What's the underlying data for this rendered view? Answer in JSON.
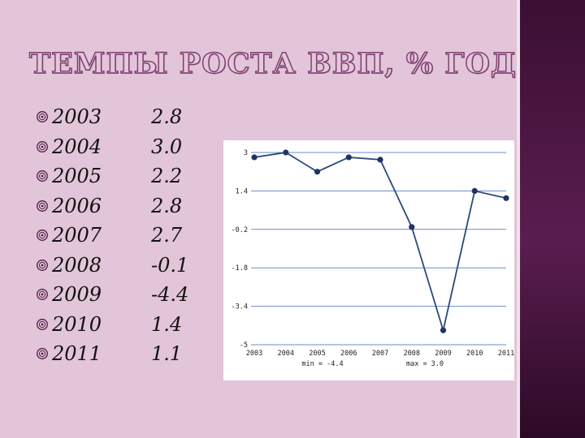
{
  "slide": {
    "title": "ТЕМПЫ РОСТА ВВП, % ГОД"
  },
  "colors": {
    "background": "#e2c5d8",
    "accent_band": "#4a1740",
    "title_outline": "#7a3a6d",
    "chart_line": "#2b4a7a",
    "grid": "#6a8cc4"
  },
  "list": [
    {
      "year": "2003",
      "value": "2.8"
    },
    {
      "year": "2004",
      "value": "3.0"
    },
    {
      "year": "2005",
      "value": "2.2"
    },
    {
      "year": "2006",
      "value": "2.8"
    },
    {
      "year": "2007",
      "value": "2.7"
    },
    {
      "year": "2008",
      "value": "-0.1"
    },
    {
      "year": "2009",
      "value": "-4.4"
    },
    {
      "year": "2010",
      "value": "1.4"
    },
    {
      "year": "2011",
      "value": "1.1"
    }
  ],
  "chart_data": {
    "type": "line",
    "x": [
      "2003",
      "2004",
      "2005",
      "2006",
      "2007",
      "2008",
      "2009",
      "2010",
      "2011"
    ],
    "series": [
      {
        "values": [
          2.8,
          3.0,
          2.2,
          2.8,
          2.7,
          -0.1,
          -4.4,
          1.4,
          1.1
        ]
      }
    ],
    "ylim": [
      -5,
      3
    ],
    "yticks": [
      "3",
      "1.4",
      "-0.2",
      "-1.8",
      "-3.4",
      "-5"
    ],
    "ytick_values": [
      3,
      1.4,
      -0.2,
      -1.8,
      -3.4,
      -5
    ],
    "grid": "horizontal",
    "footer_min": "min = -4.4",
    "footer_max": "max = 3.0"
  }
}
